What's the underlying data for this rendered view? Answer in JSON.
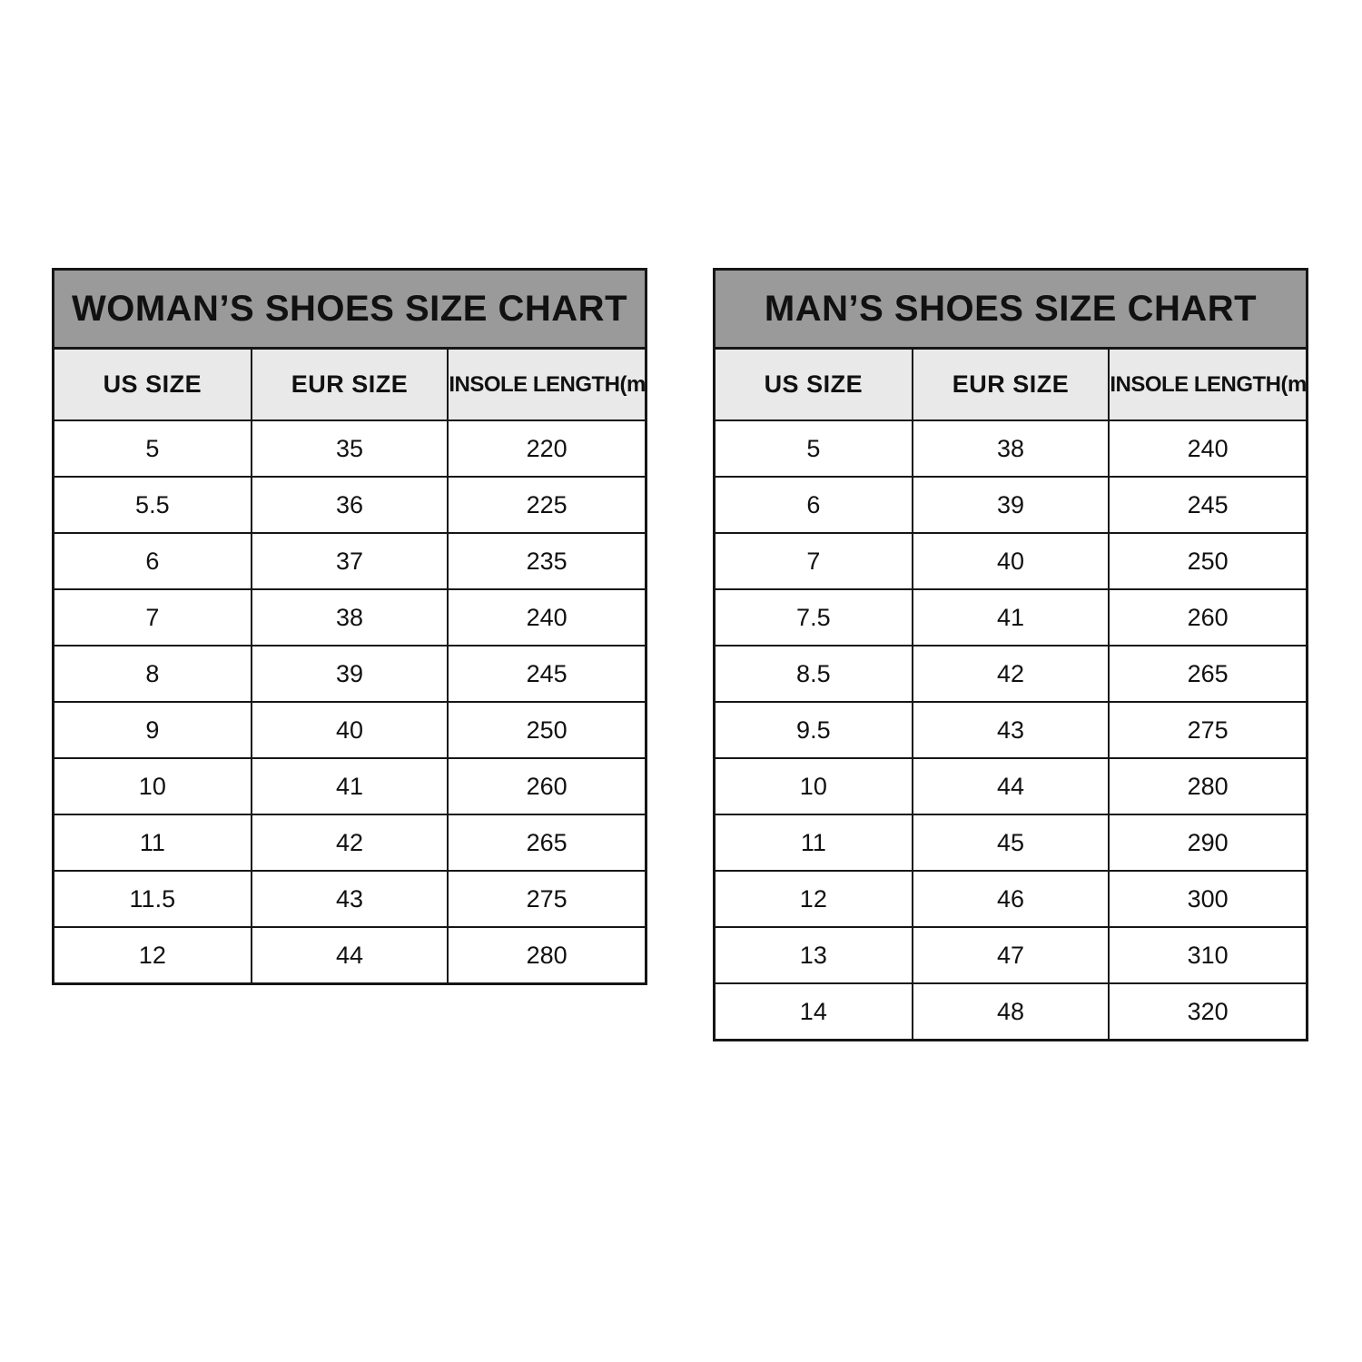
{
  "colors": {
    "page_bg": "#ffffff",
    "title_bar_bg": "#9a9a9a",
    "header_row_bg": "#e9e9e9",
    "border": "#161616",
    "text": "#111111"
  },
  "chart_data": [
    {
      "type": "table",
      "title": "WOMAN’S SHOES SIZE CHART",
      "columns": [
        "US SIZE",
        "EUR SIZE",
        "INSOLE LENGTH(mm)"
      ],
      "rows": [
        [
          "5",
          "35",
          "220"
        ],
        [
          "5.5",
          "36",
          "225"
        ],
        [
          "6",
          "37",
          "235"
        ],
        [
          "7",
          "38",
          "240"
        ],
        [
          "8",
          "39",
          "245"
        ],
        [
          "9",
          "40",
          "250"
        ],
        [
          "10",
          "41",
          "260"
        ],
        [
          "11",
          "42",
          "265"
        ],
        [
          "11.5",
          "43",
          "275"
        ],
        [
          "12",
          "44",
          "280"
        ]
      ]
    },
    {
      "type": "table",
      "title": "MAN’S SHOES SIZE CHART",
      "columns": [
        "US SIZE",
        "EUR SIZE",
        "INSOLE LENGTH(mm)"
      ],
      "rows": [
        [
          "5",
          "38",
          "240"
        ],
        [
          "6",
          "39",
          "245"
        ],
        [
          "7",
          "40",
          "250"
        ],
        [
          "7.5",
          "41",
          "260"
        ],
        [
          "8.5",
          "42",
          "265"
        ],
        [
          "9.5",
          "43",
          "275"
        ],
        [
          "10",
          "44",
          "280"
        ],
        [
          "11",
          "45",
          "290"
        ],
        [
          "12",
          "46",
          "300"
        ],
        [
          "13",
          "47",
          "310"
        ],
        [
          "14",
          "48",
          "320"
        ]
      ]
    }
  ]
}
